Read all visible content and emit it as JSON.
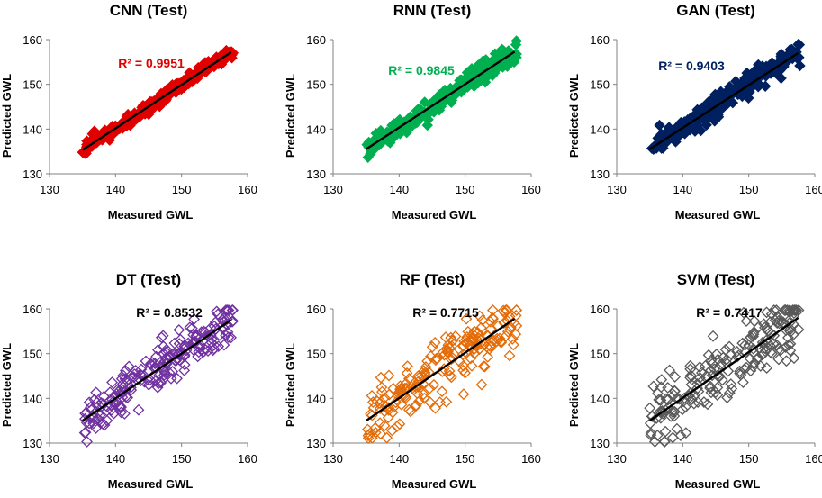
{
  "figure": {
    "background": "#ffffff"
  },
  "chart_data": [
    {
      "type": "scatter",
      "title": "CNN (Test)",
      "xlabel": "Measured GWL",
      "ylabel": "Predicted GWL",
      "xlim": [
        130,
        160
      ],
      "ylim": [
        130,
        160
      ],
      "xticks": [
        "130",
        "140",
        "150",
        "160"
      ],
      "yticks": [
        "130",
        "140",
        "150",
        "160"
      ],
      "r2_label": "R² = 0.9951",
      "r2": 0.9951,
      "color": "#e00000",
      "marker": "diamond-filled",
      "trendline": {
        "x": [
          135,
          157.5
        ],
        "y": [
          135.3,
          157.2
        ]
      },
      "x_range": [
        135,
        157.8
      ],
      "spread": 0.7,
      "n_points": 260,
      "seed": 11
    },
    {
      "type": "scatter",
      "title": "RNN (Test)",
      "xlabel": "Measured GWL",
      "ylabel": "Predicted GWL",
      "xlim": [
        130,
        160
      ],
      "ylim": [
        130,
        160
      ],
      "xticks": [
        "130",
        "140",
        "150",
        "160"
      ],
      "yticks": [
        "130",
        "140",
        "150",
        "160"
      ],
      "r2_label": "R² = 0.9845",
      "r2": 0.9845,
      "color": "#00b050",
      "marker": "diamond-filled",
      "trendline": {
        "x": [
          135,
          157.5
        ],
        "y": [
          135.5,
          157.3
        ]
      },
      "x_range": [
        135,
        157.8
      ],
      "spread": 1.0,
      "n_points": 260,
      "seed": 23
    },
    {
      "type": "scatter",
      "title": "GAN (Test)",
      "xlabel": "Measured GWL",
      "ylabel": "Predicted GWL",
      "xlim": [
        130,
        160
      ],
      "ylim": [
        130,
        160
      ],
      "xticks": [
        "130",
        "140",
        "150",
        "160"
      ],
      "yticks": [
        "130",
        "140",
        "150",
        "160"
      ],
      "r2_label": "R² = 0.9403",
      "r2": 0.9403,
      "color": "#002060",
      "marker": "diamond-filled",
      "trendline": {
        "x": [
          135,
          157.5
        ],
        "y": [
          135.5,
          157.0
        ]
      },
      "x_range": [
        135,
        157.8
      ],
      "spread": 1.3,
      "n_points": 260,
      "seed": 37
    },
    {
      "type": "scatter",
      "title": "DT (Test)",
      "xlabel": "Measured GWL",
      "ylabel": "Predicted GWL",
      "xlim": [
        130,
        160
      ],
      "ylim": [
        130,
        160
      ],
      "xticks": [
        "130",
        "140",
        "150",
        "160"
      ],
      "yticks": [
        "130",
        "140",
        "150",
        "160"
      ],
      "r2_label": "R² = 0.8532",
      "r2": 0.8532,
      "color": "#7030a0",
      "marker": "diamond-open",
      "trendline": {
        "x": [
          135,
          157.5
        ],
        "y": [
          135.0,
          157.5
        ]
      },
      "x_range": [
        135,
        157.8
      ],
      "spread": 2.6,
      "n_points": 200,
      "seed": 41
    },
    {
      "type": "scatter",
      "title": "RF (Test)",
      "xlabel": "Measured GWL",
      "ylabel": "Predicted GWL",
      "xlim": [
        130,
        160
      ],
      "ylim": [
        130,
        160
      ],
      "xticks": [
        "130",
        "140",
        "150",
        "160"
      ],
      "yticks": [
        "130",
        "140",
        "150",
        "160"
      ],
      "r2_label": "R² = 0.7715",
      "r2": 0.7715,
      "color": "#e36c09",
      "marker": "diamond-open",
      "trendline": {
        "x": [
          135,
          157.5
        ],
        "y": [
          135.0,
          157.8
        ]
      },
      "x_range": [
        135,
        157.8
      ],
      "spread": 3.4,
      "n_points": 200,
      "seed": 53
    },
    {
      "type": "scatter",
      "title": "SVM (Test)",
      "xlabel": "Measured GWL",
      "ylabel": "Predicted GWL",
      "xlim": [
        130,
        160
      ],
      "ylim": [
        130,
        160
      ],
      "xticks": [
        "130",
        "140",
        "150",
        "160"
      ],
      "yticks": [
        "130",
        "140",
        "150",
        "160"
      ],
      "r2_label": "R² = 0.7417",
      "r2": 0.7417,
      "color": "#595959",
      "marker": "diamond-open",
      "trendline": {
        "x": [
          135,
          157.5
        ],
        "y": [
          135.0,
          158.0
        ]
      },
      "x_range": [
        135,
        157.8
      ],
      "spread": 3.6,
      "n_points": 200,
      "seed": 67
    }
  ]
}
